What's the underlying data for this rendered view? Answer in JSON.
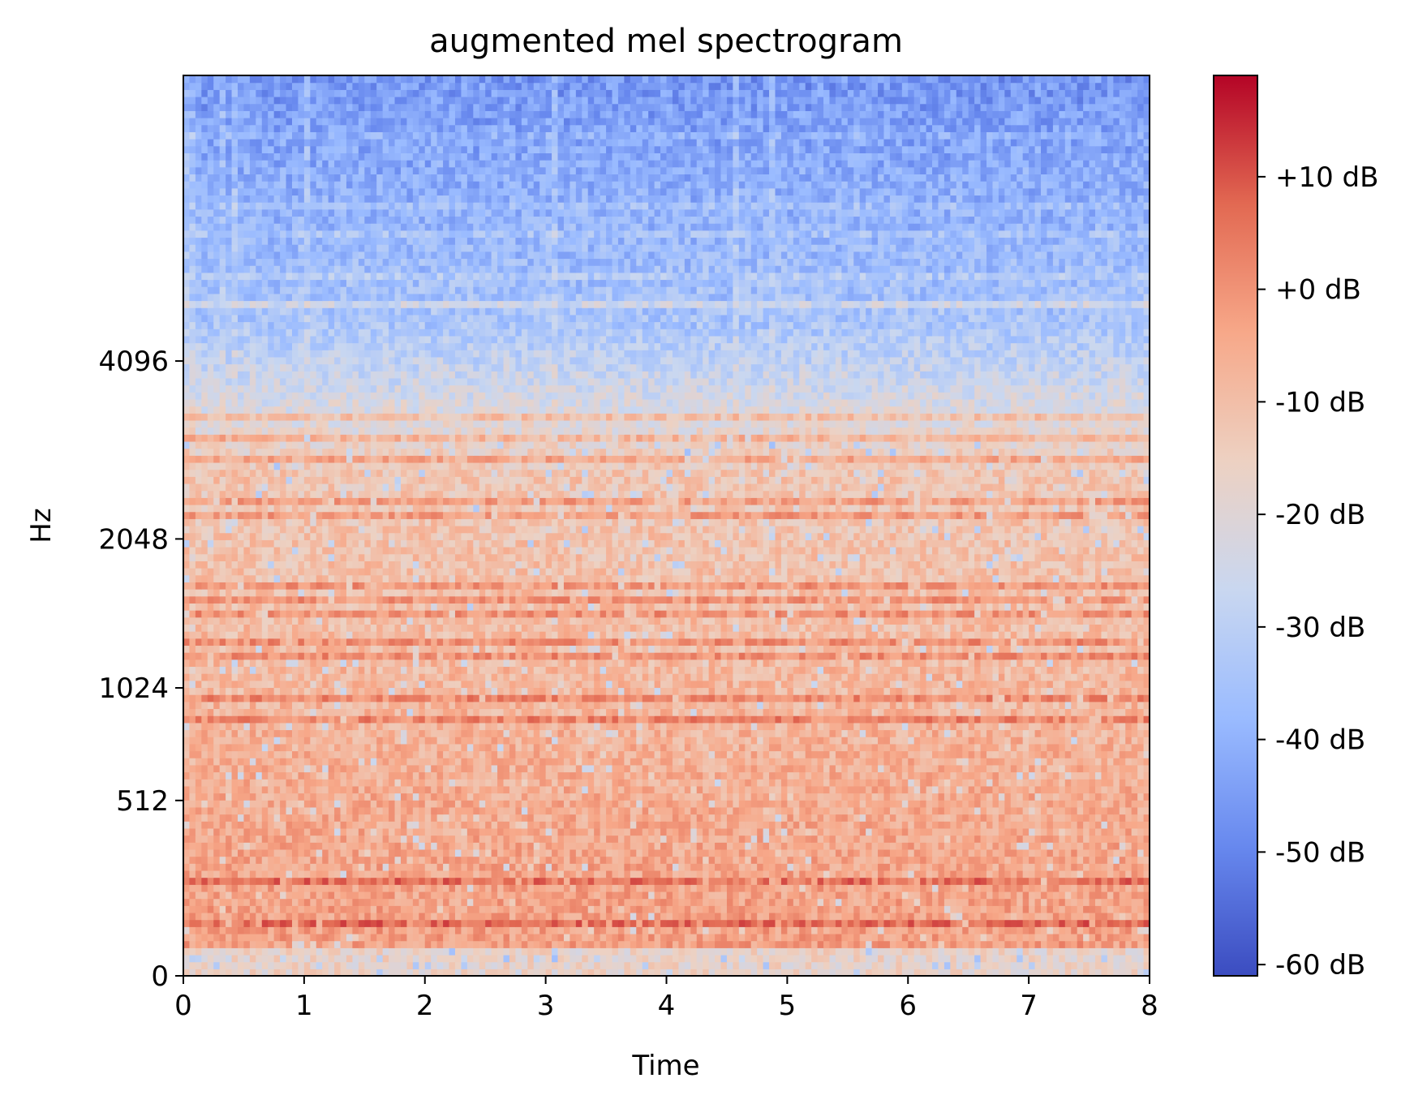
{
  "chart_data": {
    "type": "heatmap",
    "title": "augmented mel spectrogram",
    "xlabel": "Time",
    "ylabel": "Hz",
    "xlim": [
      0,
      8
    ],
    "y_scale": "mel",
    "x_ticks": [
      "0",
      "1",
      "2",
      "3",
      "4",
      "5",
      "6",
      "7",
      "8"
    ],
    "y_ticks": [
      "0",
      "512",
      "1024",
      "2048",
      "4096"
    ],
    "y_tick_values": [
      0,
      512,
      1024,
      2048,
      4096
    ],
    "colorbar": {
      "ticks": [
        "+10 dB",
        "+0 dB",
        "-10 dB",
        "-20 dB",
        "-30 dB",
        "-40 dB",
        "-50 dB",
        "-60 dB"
      ],
      "tick_values": [
        10,
        0,
        -10,
        -20,
        -30,
        -40,
        -50,
        -60
      ],
      "range": [
        -61,
        19
      ],
      "colormap": "coolwarm",
      "colors": [
        "#3b4cc0",
        "#6788ee",
        "#9abbff",
        "#c9d7f0",
        "#edd1c2",
        "#f7a889",
        "#e26952",
        "#b40426"
      ]
    },
    "grid": false
  }
}
